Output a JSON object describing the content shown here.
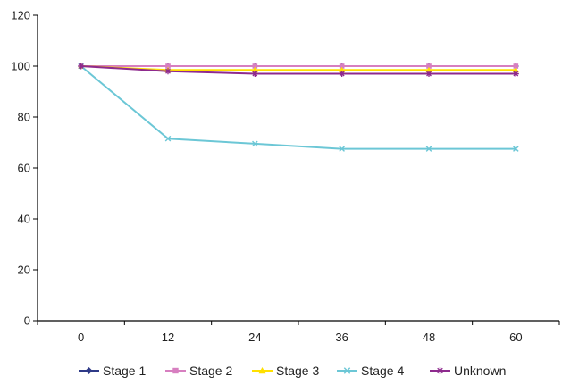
{
  "chart_data": {
    "type": "line",
    "title": "",
    "xlabel": "",
    "ylabel": "",
    "x": [
      0,
      12,
      24,
      36,
      48,
      60
    ],
    "xlim": [
      0,
      60
    ],
    "ylim": [
      0,
      120
    ],
    "y_ticks": [
      0,
      20,
      40,
      60,
      80,
      100,
      120
    ],
    "grid": "horizontal-major-only-none",
    "legend_position": "bottom",
    "series": [
      {
        "name": "Stage 1",
        "values": [
          100,
          100,
          100,
          100,
          100,
          100
        ],
        "color": "#2E3A87",
        "marker": "diamond"
      },
      {
        "name": "Stage 2",
        "values": [
          100,
          100,
          100,
          100,
          100,
          100
        ],
        "color": "#D77FC0",
        "marker": "square"
      },
      {
        "name": "Stage 3",
        "values": [
          100,
          98.5,
          98.5,
          98.5,
          98.5,
          98.5
        ],
        "color": "#FFE000",
        "marker": "triangle"
      },
      {
        "name": "Stage 4",
        "values": [
          100,
          71.5,
          69.5,
          67.5,
          67.5,
          67.5
        ],
        "color": "#6CC7D6",
        "marker": "x"
      },
      {
        "name": "Unknown",
        "values": [
          100,
          98,
          97,
          97,
          97,
          97
        ],
        "color": "#8E2A8E",
        "marker": "star"
      }
    ]
  }
}
